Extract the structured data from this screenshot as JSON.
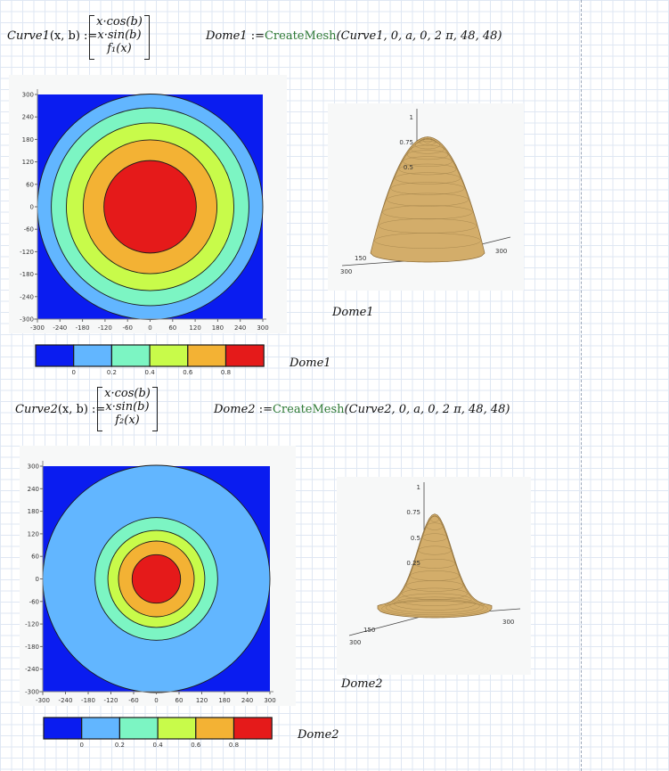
{
  "section1": {
    "func_name": "Curve1",
    "args": "(x, b)",
    "assign": ":=",
    "matrix": [
      "x·cos(b)",
      "x·sin(b)",
      "f₁(x)"
    ],
    "mesh_name": "Dome1",
    "mesh_func": "CreateMesh",
    "mesh_args": "(Curve1, 0, a, 0, 2 π, 48, 48)",
    "contour_label": "Dome1",
    "surface_label": "Dome1"
  },
  "section2": {
    "func_name": "Curve2",
    "args": "(x, b)",
    "assign": ":=",
    "matrix": [
      "x·cos(b)",
      "x·sin(b)",
      "f₂(x)"
    ],
    "mesh_name": "Dome2",
    "mesh_func": "CreateMesh",
    "mesh_args": "(Curve2, 0, a, 0, 2 π, 48, 48)",
    "contour_label": "Dome2",
    "surface_label": "Dome2"
  },
  "colors": {
    "level0": "#0a1cf0",
    "level1": "#62b6ff",
    "level2": "#7cf5c3",
    "level3": "#c8fb4a",
    "level4": "#f3b234",
    "level5": "#e51a1a",
    "surface": "#d3ad6a"
  },
  "chart_data": [
    {
      "type": "heatmap",
      "name": "Dome1 contour",
      "x_ticks": [
        "-300",
        "-240",
        "-180",
        "-120",
        "-60",
        "0",
        "60",
        "120",
        "180",
        "240",
        "300"
      ],
      "y_ticks": [
        "300",
        "240",
        "180",
        "120",
        "60",
        "0",
        "-60",
        "-120",
        "-180",
        "-240",
        "-300"
      ],
      "xlim": [
        -300,
        300
      ],
      "ylim": [
        -300,
        300
      ],
      "contour_radii": [
        300,
        263,
        223,
        178,
        123
      ],
      "colorbar_ticks": [
        "0",
        "0.2",
        "0.4",
        "0.6",
        "0.8"
      ],
      "caption": "Dome1"
    },
    {
      "type": "heatmap",
      "name": "Dome2 contour",
      "x_ticks": [
        "-300",
        "-240",
        "-180",
        "-120",
        "-60",
        "0",
        "60",
        "120",
        "180",
        "240",
        "300"
      ],
      "y_ticks": [
        "300",
        "240",
        "180",
        "120",
        "60",
        "0",
        "-60",
        "-120",
        "-180",
        "-240",
        "-300"
      ],
      "xlim": [
        -300,
        300
      ],
      "ylim": [
        -300,
        300
      ],
      "contour_radii": [
        300,
        162,
        128,
        100,
        64
      ],
      "colorbar_ticks": [
        "0",
        "0.2",
        "0.4",
        "0.6",
        "0.8"
      ],
      "caption": "Dome2"
    },
    {
      "type": "area",
      "name": "Dome1 surface",
      "z_ticks": [
        "1",
        "0.75",
        "0.5"
      ],
      "x_tick": "300",
      "y_ticks": [
        "150",
        "300"
      ],
      "caption": "Dome1"
    },
    {
      "type": "area",
      "name": "Dome2 surface",
      "z_ticks": [
        "1",
        "0.75",
        "0.5",
        "0.25"
      ],
      "x_tick": "300",
      "y_ticks": [
        "150",
        "300"
      ],
      "caption": "Dome2"
    }
  ]
}
